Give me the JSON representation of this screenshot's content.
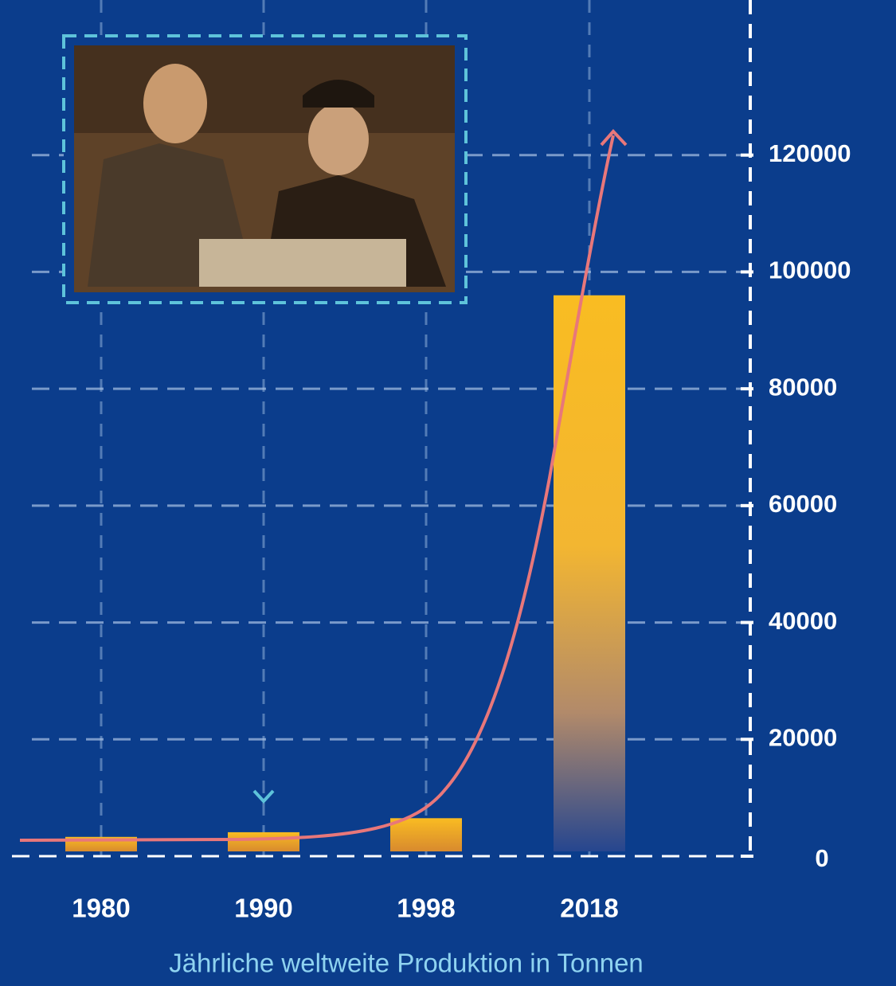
{
  "chart_data": {
    "type": "bar",
    "x_label": "Jährliche weltweite Produktion in Tonnen",
    "categories": [
      "1980",
      "1990",
      "1998",
      "2018"
    ],
    "values": [
      3300,
      4100,
      6500,
      96000
    ],
    "color": "#f9bc22",
    "ylim": [
      0,
      140000
    ],
    "yticks": [
      0,
      20000,
      40000,
      60000,
      80000,
      100000,
      120000
    ],
    "grid": true
  }
}
